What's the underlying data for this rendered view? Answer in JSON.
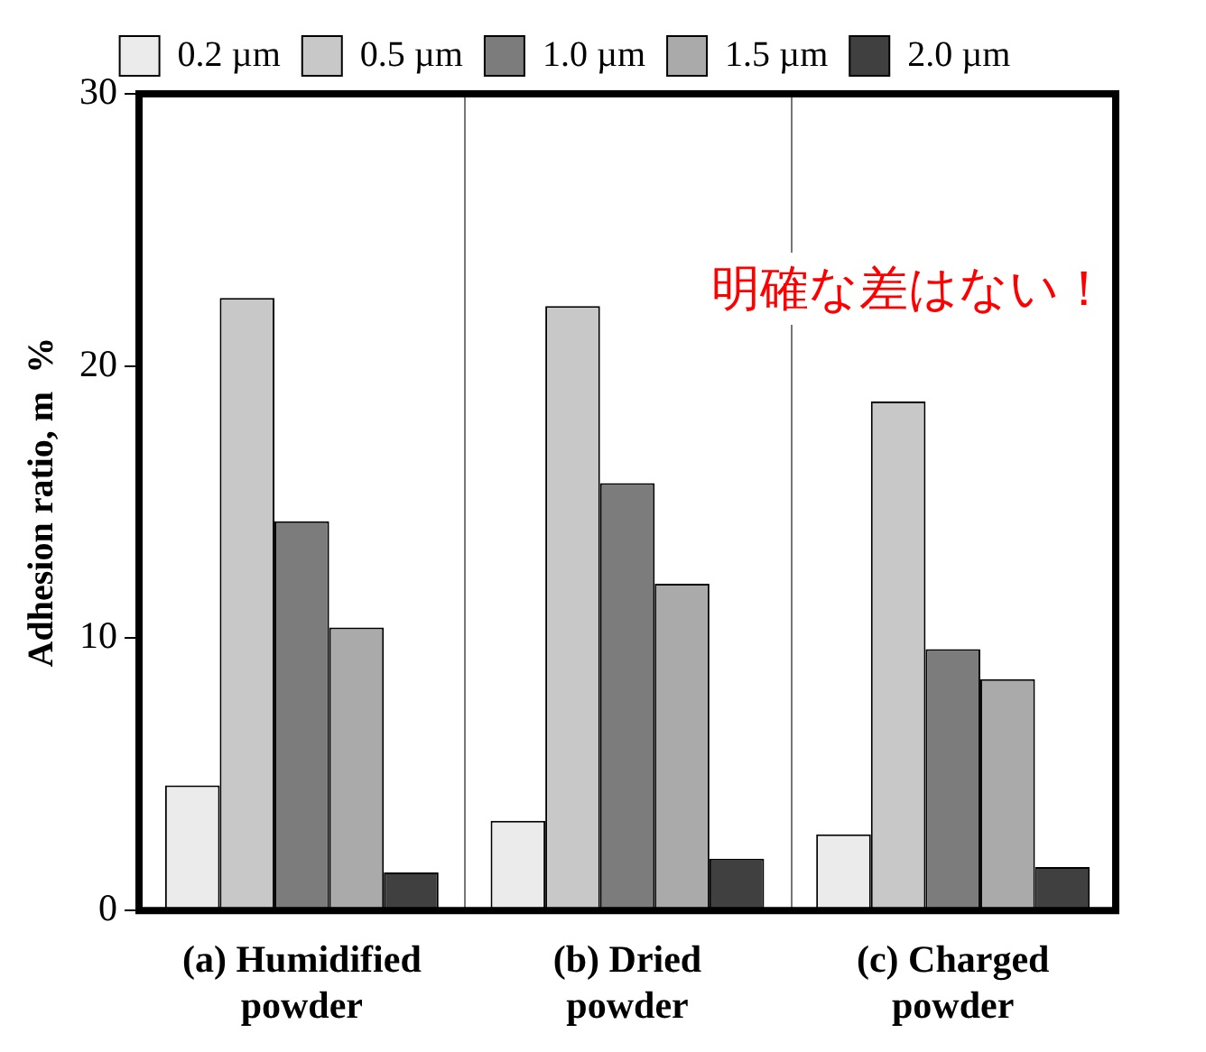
{
  "chart_data": {
    "type": "bar",
    "ylabel": "Adhesion ratio, m  %",
    "categories": [
      "(a) Humidified powder",
      "(b) Dried powder",
      "(c) Charged powder"
    ],
    "series": [
      {
        "name": "0.2 µm",
        "color": "#ebebeb",
        "values": [
          4.6,
          3.3,
          2.8
        ]
      },
      {
        "name": "0.5 µm",
        "color": "#c8c8c8",
        "values": [
          22.5,
          22.2,
          18.7
        ]
      },
      {
        "name": "1.0 µm",
        "color": "#7c7c7c",
        "values": [
          14.3,
          15.7,
          9.6
        ]
      },
      {
        "name": "1.5 µm",
        "color": "#aaaaaa",
        "values": [
          10.4,
          12.0,
          8.5
        ]
      },
      {
        "name": "2.0 µm",
        "color": "#404040",
        "values": [
          1.4,
          1.9,
          1.6
        ]
      }
    ],
    "ylim": [
      0,
      30
    ],
    "yticks": [
      0,
      10,
      20,
      30
    ],
    "grid": "x",
    "legend": "top",
    "annotations": [
      "明確な差はない！"
    ]
  }
}
